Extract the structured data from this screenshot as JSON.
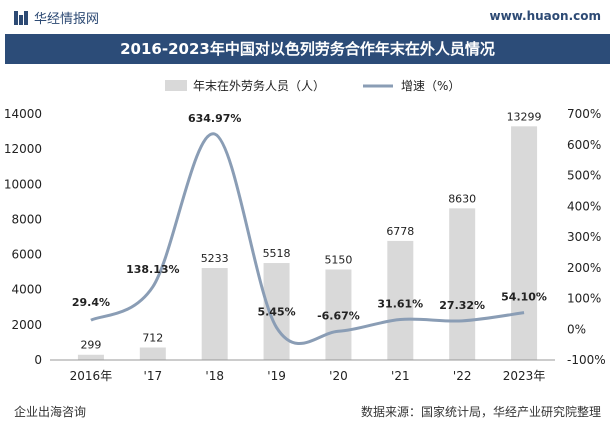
{
  "header": {
    "brand": "华经情报网",
    "site": "www.huaon.com",
    "title": "2016-2023年中国对以色列劳务合作年末在外人员情况"
  },
  "footer": {
    "left": "企业出海咨询",
    "right": "数据来源：国家统计局，华经产业研究院整理"
  },
  "colors": {
    "bar": "#d9d9d9",
    "line": "#8a9db5",
    "title_bg": "#2c4c78"
  },
  "chart_data": {
    "type": "bar",
    "title": "2016-2023年中国对以色列劳务合作年末在外人员情况",
    "categories": [
      "2016年",
      "'17",
      "'18",
      "'19",
      "'20",
      "'21",
      "'22",
      "2023年"
    ],
    "series": [
      {
        "name": "年末在外劳务人员（人）",
        "type": "bar",
        "axis": "left",
        "values": [
          299,
          712,
          5233,
          5518,
          5150,
          6778,
          8630,
          13299
        ],
        "labels": [
          "299",
          "712",
          "5233",
          "5518",
          "5150",
          "6778",
          "8630",
          "13299"
        ]
      },
      {
        "name": "增速（%）",
        "type": "line",
        "axis": "right",
        "values": [
          29.4,
          138.13,
          634.97,
          5.45,
          -6.67,
          31.61,
          27.32,
          54.1
        ],
        "labels": [
          "29.4%",
          "138.13%",
          "634.97%",
          "5.45%",
          "-6.67%",
          "31.61%",
          "27.32%",
          "54.10%"
        ]
      }
    ],
    "left_axis": {
      "min": 0,
      "max": 14000,
      "step": 2000,
      "ticks": [
        "0",
        "2000",
        "4000",
        "6000",
        "8000",
        "10000",
        "12000",
        "14000"
      ]
    },
    "right_axis": {
      "min": -100,
      "max": 700,
      "step": 100,
      "ticks": [
        "-100%",
        "0%",
        "100%",
        "200%",
        "300%",
        "400%",
        "500%",
        "600%",
        "700%"
      ]
    },
    "legend": [
      "年末在外劳务人员（人）",
      "增速（%）"
    ],
    "legend_position": "top-center"
  }
}
